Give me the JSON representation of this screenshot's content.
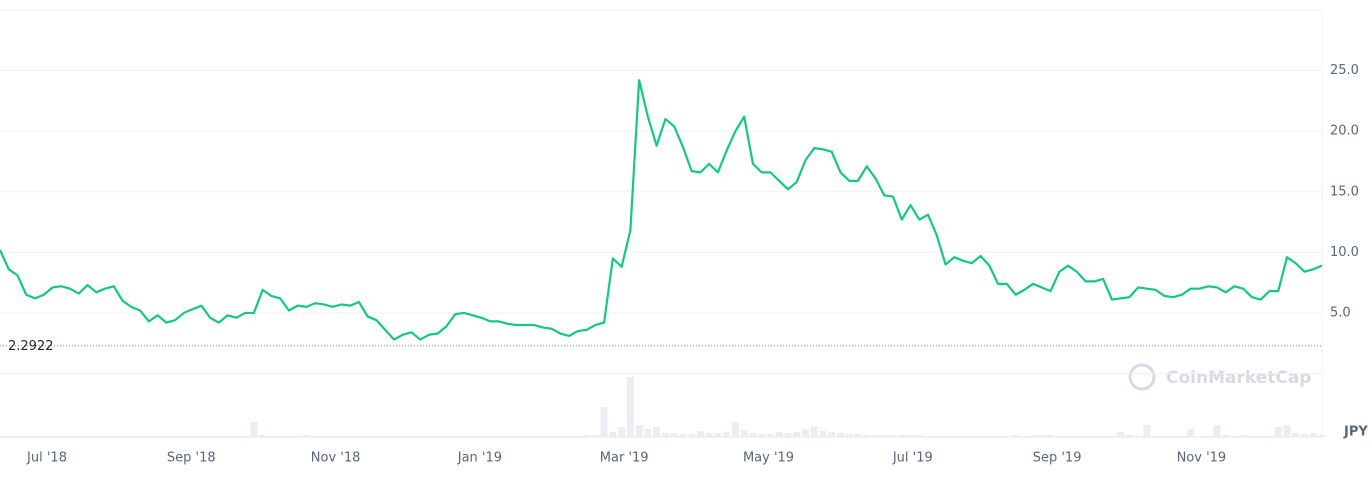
{
  "chart_data": {
    "type": "line",
    "color": "#16c784",
    "volume_color": "#eaedf1",
    "grid": true,
    "ylim": [
      0,
      30
    ],
    "yticks": [
      {
        "value": 5,
        "label": "5.0"
      },
      {
        "value": 10,
        "label": "10.0"
      },
      {
        "value": 15,
        "label": "15.0"
      },
      {
        "value": 20,
        "label": "20.0"
      },
      {
        "value": 25,
        "label": "25.0"
      }
    ],
    "x_labels": [
      "Jul '18",
      "Sep '18",
      "Nov '18",
      "Jan '19",
      "Mar '19",
      "May '19",
      "Jul '19",
      "Sep '19",
      "Nov '19"
    ],
    "reference_line": 2.2922,
    "currency": "JPY",
    "watermark": "CoinMarketCap",
    "values": [
      10.2,
      8.6,
      8.1,
      6.5,
      6.2,
      6.5,
      7.1,
      7.2,
      7.0,
      6.6,
      7.3,
      6.7,
      7.0,
      7.2,
      6.0,
      5.5,
      5.2,
      4.3,
      4.8,
      4.2,
      4.4,
      5.0,
      5.3,
      5.6,
      4.6,
      4.2,
      4.8,
      4.6,
      5.0,
      5.0,
      6.9,
      6.4,
      6.2,
      5.2,
      5.6,
      5.5,
      5.8,
      5.7,
      5.5,
      5.7,
      5.6,
      5.9,
      4.7,
      4.4,
      3.6,
      2.8,
      3.2,
      3.4,
      2.8,
      3.2,
      3.3,
      3.9,
      4.9,
      5.0,
      4.8,
      4.6,
      4.3,
      4.3,
      4.1,
      4.0,
      4.0,
      4.0,
      3.8,
      3.7,
      3.3,
      3.1,
      3.5,
      3.6,
      4.0,
      4.2,
      9.5,
      8.8,
      11.8,
      24.2,
      21.2,
      18.8,
      21.0,
      20.4,
      18.7,
      16.7,
      16.6,
      17.3,
      16.6,
      18.4,
      20.0,
      21.2,
      17.3,
      16.6,
      16.6,
      15.9,
      15.2,
      15.8,
      17.6,
      18.6,
      18.5,
      18.3,
      16.6,
      15.9,
      15.9,
      17.1,
      16.1,
      14.7,
      14.6,
      12.7,
      13.9,
      12.7,
      13.1,
      11.4,
      9.0,
      9.6,
      9.3,
      9.1,
      9.7,
      8.9,
      7.4,
      7.4,
      6.5,
      6.9,
      7.4,
      7.1,
      6.8,
      8.4,
      8.9,
      8.4,
      7.6,
      7.6,
      7.8,
      6.1,
      6.2,
      6.3,
      7.1,
      7.0,
      6.9,
      6.4,
      6.3,
      6.5,
      7.0,
      7.0,
      7.2,
      7.1,
      6.7,
      7.2,
      7.0,
      6.3,
      6.1,
      6.8,
      6.8,
      9.6,
      9.1,
      8.4,
      8.6,
      8.9
    ],
    "volume": [
      1,
      1,
      1,
      1,
      1,
      1,
      1,
      1,
      1,
      1,
      1,
      1,
      1,
      1,
      1,
      1,
      1,
      1,
      1,
      1,
      1,
      1,
      1,
      1,
      1,
      1,
      1,
      1,
      1,
      15,
      2,
      1,
      1,
      1,
      1,
      2,
      1,
      1,
      1,
      1,
      1,
      1,
      1,
      1,
      1,
      1,
      1,
      1,
      1,
      1,
      1,
      1,
      1,
      1,
      1,
      1,
      1,
      1,
      1,
      1,
      1,
      1,
      1,
      1,
      1,
      1,
      1,
      2,
      2,
      30,
      5,
      10,
      60,
      12,
      8,
      10,
      4,
      4,
      3,
      3,
      6,
      4,
      4,
      5,
      15,
      7,
      4,
      3,
      3,
      5,
      4,
      5,
      8,
      10,
      6,
      5,
      4,
      3,
      3,
      2,
      2,
      2,
      2,
      2,
      2,
      2,
      1,
      1,
      1,
      1,
      1,
      1,
      1,
      1,
      1,
      1,
      2,
      1,
      2,
      2,
      2,
      1,
      1,
      1,
      1,
      1,
      1,
      1,
      5,
      2,
      1,
      12,
      1,
      1,
      1,
      1,
      8,
      1,
      1,
      12,
      2,
      1,
      2,
      1,
      1,
      1,
      10,
      12,
      4,
      3,
      4,
      2
    ]
  }
}
